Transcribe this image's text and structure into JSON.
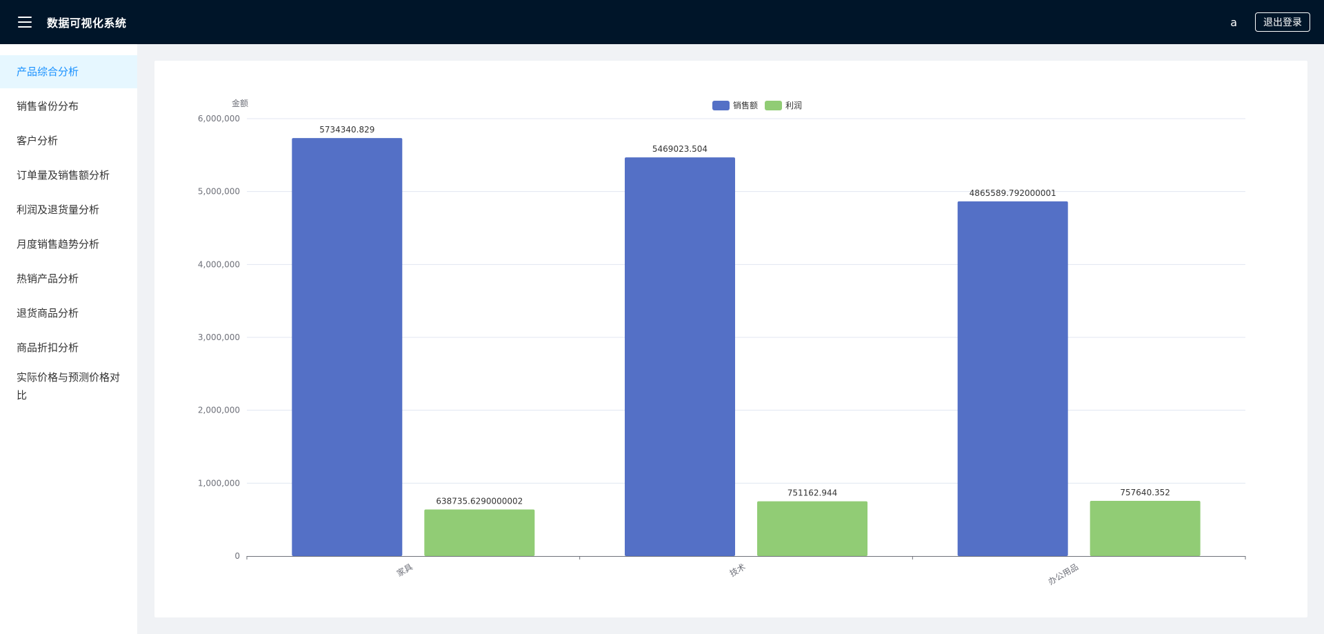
{
  "header": {
    "app_title": "数据可视化系统",
    "menu_icon": "hamburger-menu-icon",
    "username": "a",
    "logout_label": "退出登录"
  },
  "sidebar": {
    "items": [
      {
        "label": "产品综合分析",
        "active": true
      },
      {
        "label": "销售省份分布"
      },
      {
        "label": "客户分析"
      },
      {
        "label": "订单量及销售额分析"
      },
      {
        "label": "利润及退货量分析"
      },
      {
        "label": "月度销售趋势分析"
      },
      {
        "label": "热销产品分析"
      },
      {
        "label": "退货商品分析"
      },
      {
        "label": "商品折扣分析"
      },
      {
        "label": "实际价格与预测价格对比"
      }
    ]
  },
  "chart_data": {
    "type": "bar",
    "categories": [
      "家具",
      "技术",
      "办公用品"
    ],
    "series": [
      {
        "name": "销售额",
        "color": "#5470c6",
        "values": [
          5734340.829,
          5469023.504,
          4865589.792000001
        ],
        "labels": [
          "5734340.829",
          "5469023.504",
          "4865589.792000001"
        ]
      },
      {
        "name": "利润",
        "color": "#91cc75",
        "values": [
          638735.6290000002,
          751162.944,
          757640.352
        ],
        "labels": [
          "638735.6290000002",
          "751162.944",
          "757640.352"
        ]
      }
    ],
    "ylabel": "金额",
    "ylim": [
      0,
      6000000
    ],
    "yticks": [
      0,
      1000000,
      2000000,
      3000000,
      4000000,
      5000000,
      6000000
    ],
    "ytick_labels": [
      "0",
      "1,000,000",
      "2,000,000",
      "3,000,000",
      "4,000,000",
      "5,000,000",
      "6,000,000"
    ],
    "grid": true,
    "legend_position": "top-center"
  }
}
